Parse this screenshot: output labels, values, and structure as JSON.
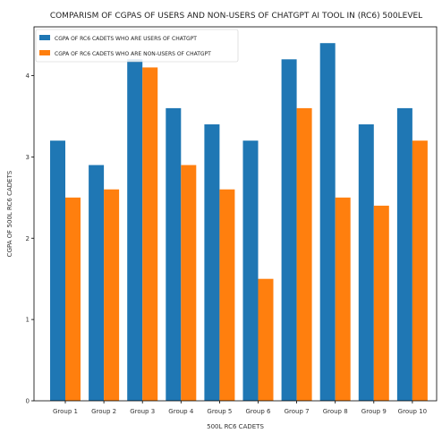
{
  "chart_data": {
    "type": "bar",
    "title": "COMPARISM OF  CGPAS OF USERS AND NON-USERS OF CHATGPT AI TOOL IN (RC6)  500LEVEL",
    "xlabel": "500L RC6 CADETS",
    "ylabel": "CGPA OF 500L RC6 CADETS",
    "categories": [
      "Group 1",
      "Group 2",
      "Group 3",
      "Group 4",
      "Group 5",
      "Group 6",
      "Group 7",
      "Group 8",
      "Group 9",
      "Group 10"
    ],
    "series": [
      {
        "name": "CGPA OF RC6 CADETS WHO ARE USERS OF CHATGPT",
        "color": "#1f77b4",
        "values": [
          3.2,
          2.9,
          4.2,
          3.6,
          3.4,
          3.2,
          4.2,
          4.4,
          3.4,
          3.6
        ]
      },
      {
        "name": "CGPA OF RC6 CADETS WHO ARE  NON-USERS OF CHATGPT",
        "color": "#ff7f0e",
        "values": [
          2.5,
          2.6,
          4.1,
          2.9,
          2.6,
          1.5,
          3.6,
          2.5,
          2.4,
          3.2
        ]
      }
    ],
    "ylim": [
      0,
      4.6
    ],
    "yticks": [
      0,
      1,
      2,
      3,
      4
    ],
    "grid": false,
    "legend_position": "top-left"
  }
}
